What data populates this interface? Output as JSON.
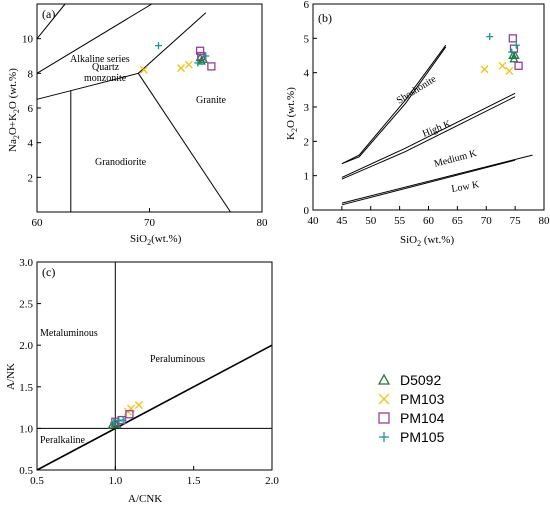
{
  "colors": {
    "D5092": "#1a7a3c",
    "PM103": "#f2c30f",
    "PM104": "#9b3c9b",
    "PM105": "#159a8f"
  },
  "legend": {
    "items": [
      {
        "name": "D5092",
        "marker": "triangle"
      },
      {
        "name": "PM103",
        "marker": "x"
      },
      {
        "name": "PM104",
        "marker": "square"
      },
      {
        "name": "PM105",
        "marker": "plus"
      }
    ]
  },
  "chart_data": [
    {
      "panel": "(a)",
      "type": "scatter",
      "title": "",
      "xlabel_main": "SiO",
      "xlabel_sub": "2",
      "xlabel_tail": "(wt.%)",
      "ylabel": "Na2O+K2O (wt.%)",
      "ylabel_parts": [
        "Na",
        "2",
        "O+K",
        "2",
        "O (wt.%)"
      ],
      "xlim": [
        60,
        80
      ],
      "ylim": [
        0,
        12
      ],
      "xticks": [
        60,
        70,
        80
      ],
      "yticks": [
        2,
        4,
        6,
        8,
        10
      ],
      "regions": [
        "Alkaline series",
        "Quartz",
        "monzonite",
        "Granite",
        "Granodiorite"
      ],
      "boundaries": [
        [
          [
            60,
            6.5
          ],
          [
            63,
            7
          ],
          [
            69,
            8
          ],
          [
            75,
            11.5
          ]
        ],
        [
          [
            63,
            7
          ],
          [
            63,
            0
          ]
        ],
        [
          [
            69,
            8
          ],
          [
            77.2,
            0
          ]
        ],
        [
          [
            60,
            8
          ],
          [
            70.2,
            12
          ]
        ],
        [
          [
            60,
            10
          ],
          [
            62.5,
            12
          ]
        ]
      ],
      "series": [
        {
          "name": "D5092",
          "points": [
            [
              74.5,
              8.9
            ],
            [
              74.6,
              8.7
            ],
            [
              74.8,
              8.8
            ]
          ]
        },
        {
          "name": "PM103",
          "points": [
            [
              69.5,
              8.2
            ],
            [
              72.8,
              8.3
            ],
            [
              73.5,
              8.5
            ]
          ]
        },
        {
          "name": "PM104",
          "points": [
            [
              74.5,
              9.3
            ],
            [
              74.6,
              9.0
            ],
            [
              75.5,
              8.4
            ]
          ]
        },
        {
          "name": "PM105",
          "points": [
            [
              70.8,
              9.6
            ],
            [
              74.3,
              8.6
            ],
            [
              75.0,
              9.0
            ]
          ]
        }
      ]
    },
    {
      "panel": "(b)",
      "type": "scatter",
      "title": "",
      "xlabel_main": "SiO",
      "xlabel_sub": "2",
      "xlabel_tail": " (wt.%)",
      "ylabel": "K2O (wt.%)",
      "ylabel_parts": [
        "K",
        "2",
        "O (wt.%)"
      ],
      "xlim": [
        40,
        80
      ],
      "ylim": [
        0,
        6
      ],
      "xticks": [
        40,
        45,
        50,
        55,
        60,
        65,
        70,
        75,
        80
      ],
      "yticks": [
        0,
        1,
        2,
        3,
        4,
        5,
        6
      ],
      "regions": [
        "Shoshonite",
        "High K",
        "Medium K",
        "Low K"
      ],
      "boundaries": [
        [
          [
            45,
            1.35
          ],
          [
            48,
            1.55
          ],
          [
            56,
            3.1
          ],
          [
            63,
            4.75
          ]
        ],
        [
          [
            45,
            1.35
          ],
          [
            48,
            1.6
          ],
          [
            56,
            3.2
          ],
          [
            63,
            4.8
          ]
        ],
        [
          [
            45,
            0.9
          ],
          [
            56,
            1.7
          ],
          [
            75,
            3.3
          ]
        ],
        [
          [
            45,
            0.95
          ],
          [
            56,
            1.8
          ],
          [
            75,
            3.4
          ]
        ],
        [
          [
            45,
            0.15
          ],
          [
            75,
            1.45
          ]
        ],
        [
          [
            45,
            0.2
          ],
          [
            78,
            1.6
          ]
        ]
      ],
      "series": [
        {
          "name": "D5092",
          "points": [
            [
              74.6,
              4.5
            ],
            [
              74.8,
              4.4
            ],
            [
              75.0,
              4.5
            ]
          ]
        },
        {
          "name": "PM103",
          "points": [
            [
              69.7,
              4.1
            ],
            [
              72.8,
              4.2
            ],
            [
              74.0,
              4.05
            ]
          ]
        },
        {
          "name": "PM104",
          "points": [
            [
              74.6,
              5.0
            ],
            [
              74.8,
              4.7
            ],
            [
              75.6,
              4.2
            ]
          ]
        },
        {
          "name": "PM105",
          "points": [
            [
              70.6,
              5.05
            ],
            [
              74.4,
              4.6
            ],
            [
              75.2,
              4.8
            ]
          ]
        }
      ]
    },
    {
      "panel": "(c)",
      "type": "scatter",
      "title": "",
      "xlabel": "A/CNK",
      "ylabel": "A/NK",
      "xlim": [
        0.5,
        2.0
      ],
      "ylim": [
        0.5,
        3.0
      ],
      "xticks": [
        0.5,
        1.0,
        1.5,
        2.0
      ],
      "xtick_labels": [
        "0.5",
        "1.0",
        "1.5",
        "2.0"
      ],
      "yticks": [
        0.5,
        1.0,
        1.5,
        2.0,
        2.5,
        3.0
      ],
      "ytick_labels": [
        "0.5",
        "1.0",
        "1.5",
        "2.0",
        "2.5",
        "3.0"
      ],
      "regions": [
        "Metaluminous",
        "Peraluminous",
        "Peralkaline"
      ],
      "boundaries": [
        [
          [
            1.0,
            3.0
          ],
          [
            1.0,
            0.5
          ]
        ],
        [
          [
            0.5,
            1.0
          ],
          [
            2.0,
            1.0
          ]
        ],
        [
          [
            0.5,
            0.5
          ],
          [
            2.0,
            2.0
          ]
        ]
      ],
      "series": [
        {
          "name": "D5092",
          "points": [
            [
              0.98,
              1.04
            ],
            [
              1.0,
              1.06
            ],
            [
              1.01,
              1.05
            ]
          ]
        },
        {
          "name": "PM103",
          "points": [
            [
              1.08,
              1.2
            ],
            [
              1.1,
              1.24
            ],
            [
              1.15,
              1.28
            ]
          ]
        },
        {
          "name": "PM104",
          "points": [
            [
              1.0,
              1.08
            ],
            [
              1.04,
              1.1
            ],
            [
              1.09,
              1.17
            ]
          ]
        },
        {
          "name": "PM105",
          "points": [
            [
              0.99,
              1.07
            ],
            [
              1.02,
              1.09
            ],
            [
              1.05,
              1.1
            ]
          ]
        }
      ]
    }
  ]
}
